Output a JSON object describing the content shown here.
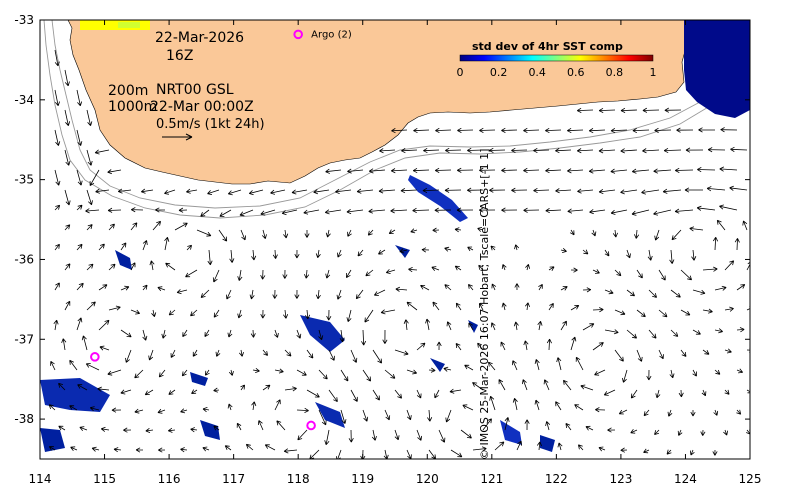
{
  "map": {
    "date_label": "22-Mar-2026",
    "time_label": "16Z",
    "depth_label_1": "200m",
    "depth_label_2": "1000m",
    "product_label": "NRT00 GSL",
    "product_time_label": "22-Mar 00:00Z",
    "scale_label": "0.5m/s (1kt 24h)",
    "credit": "© IMOS 25-Mar-2026 16:07 Hobart; Tscale=CARS+[-1 1]",
    "colors": {
      "land": "#fac898",
      "ocean": "#ffffff",
      "arrow": "#000000",
      "argo": "#ff00ff",
      "contour": "#999999"
    },
    "legend": {
      "title": "std dev of 4hr SST comp",
      "ticks": [
        "0",
        "0.2",
        "0.4",
        "0.6",
        "0.8",
        "1"
      ],
      "colorscale": [
        "#00007f",
        "#0000ff",
        "#0080ff",
        "#00ffff",
        "#80ff80",
        "#ffff00",
        "#ff8000",
        "#ff0000",
        "#7f0000"
      ]
    },
    "argo_floats": [
      {
        "label": "Argo (2)",
        "lon": 118.0,
        "lat": -33.18
      },
      {
        "label": "",
        "lon": 114.85,
        "lat": -37.22
      },
      {
        "label": "",
        "lon": 118.2,
        "lat": -38.08
      }
    ],
    "axes": {
      "lon_range": [
        114,
        125
      ],
      "lat_range": [
        -38.5,
        -33
      ],
      "x_ticks": [
        "114",
        "115",
        "116",
        "117",
        "118",
        "119",
        "120",
        "121",
        "122",
        "123",
        "124",
        "125"
      ],
      "y_ticks": [
        "-33",
        "-34",
        "-35",
        "-36",
        "-37",
        "-38"
      ]
    }
  }
}
